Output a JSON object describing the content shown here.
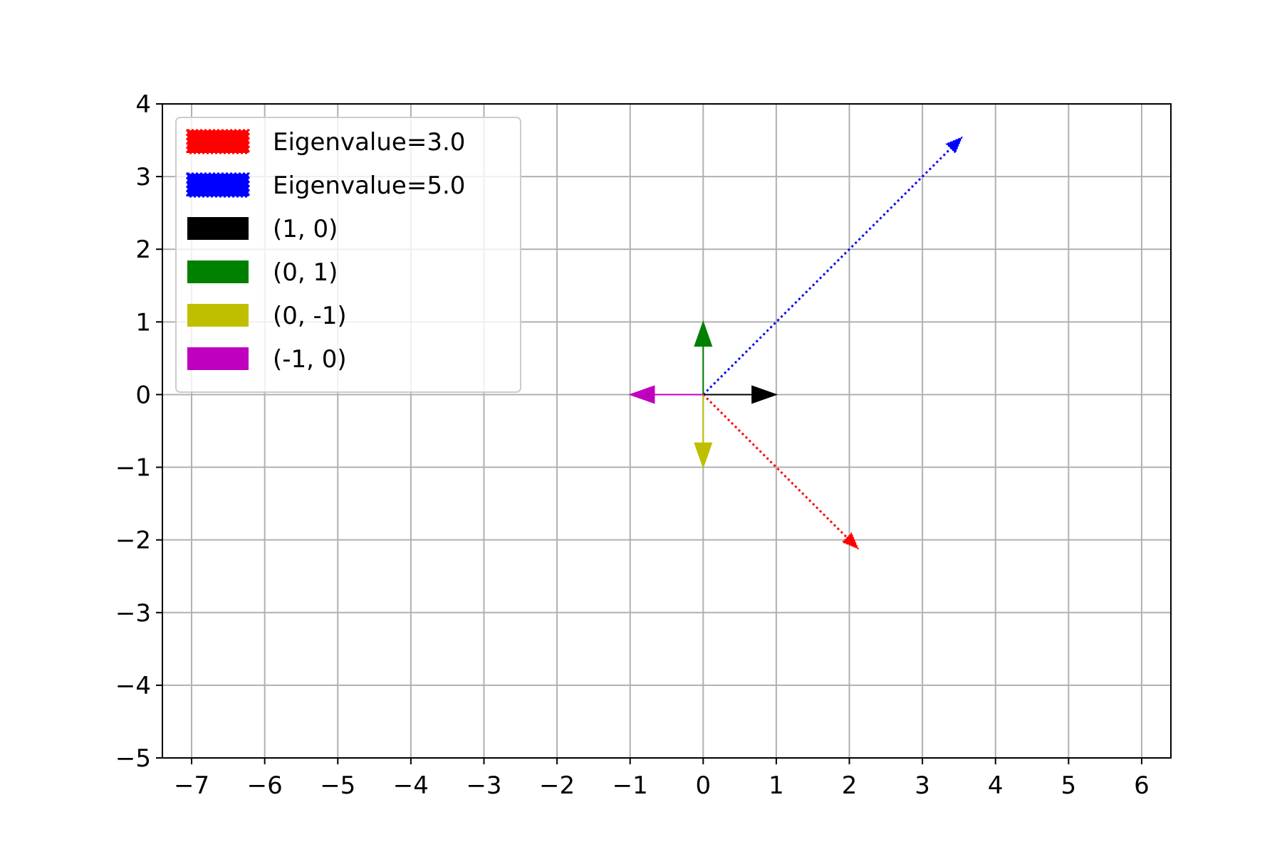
{
  "chart_data": {
    "type": "quiver",
    "title": "",
    "xlabel": "",
    "ylabel": "",
    "xlim": [
      -7.4,
      6.4
    ],
    "ylim": [
      -5,
      4
    ],
    "grid": true,
    "x_ticks": [
      -7,
      -6,
      -5,
      -4,
      -3,
      -2,
      -1,
      0,
      1,
      2,
      3,
      4,
      5,
      6
    ],
    "y_ticks": [
      -5,
      -4,
      -3,
      -2,
      -1,
      0,
      1,
      2,
      3,
      4
    ],
    "x_tick_labels": [
      "−7",
      "−6",
      "−5",
      "−4",
      "−3",
      "−2",
      "−1",
      "0",
      "1",
      "2",
      "3",
      "4",
      "5",
      "6"
    ],
    "y_tick_labels": [
      "−5",
      "−4",
      "−3",
      "−2",
      "−1",
      "0",
      "1",
      "2",
      "3",
      "4"
    ],
    "legend_position": "upper-left",
    "series": [
      {
        "name": "Eigenvalue=3.0",
        "color": "#ff0000",
        "style": "dotted",
        "from": [
          0,
          0
        ],
        "to": [
          2.12,
          -2.12
        ]
      },
      {
        "name": "Eigenvalue=5.0",
        "color": "#0000ff",
        "style": "dotted",
        "from": [
          0,
          0
        ],
        "to": [
          3.54,
          3.54
        ]
      },
      {
        "name": "(1, 0)",
        "color": "#000000",
        "style": "solid",
        "from": [
          0,
          0
        ],
        "to": [
          1,
          0
        ]
      },
      {
        "name": "(0, 1)",
        "color": "#008000",
        "style": "solid",
        "from": [
          0,
          0
        ],
        "to": [
          0,
          1
        ]
      },
      {
        "name": "(0, -1)",
        "color": "#bfbf00",
        "style": "solid",
        "from": [
          0,
          0
        ],
        "to": [
          0,
          -1
        ]
      },
      {
        "name": "(-1, 0)",
        "color": "#bf00bf",
        "style": "solid",
        "from": [
          0,
          0
        ],
        "to": [
          -1,
          0
        ]
      }
    ]
  }
}
